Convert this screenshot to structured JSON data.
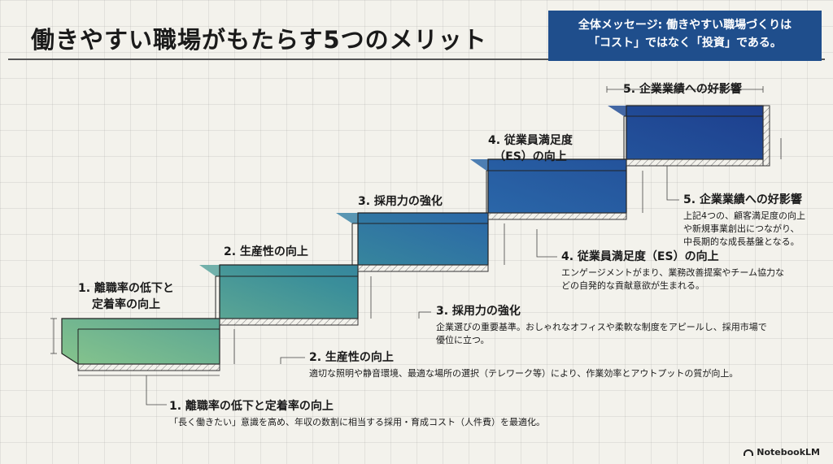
{
  "title": "働きやすい職場がもたらす5つのメリット",
  "message": {
    "line1": "全体メッセージ: 働きやすい職場づくりは",
    "line2": "「コスト」ではなく「投資」である。"
  },
  "steps": [
    {
      "label_line1": "1. 離職率の低下と",
      "label_line2": "定着率の向上",
      "desc_title": "1. 離職率の低下と定着率の向上",
      "desc_text": "「長く働きたい」意識を高め、年収の数割に相当する採用・育成コスト（人件費）を最適化。"
    },
    {
      "label": "2. 生産性の向上",
      "desc_title": "2. 生産性の向上",
      "desc_text": "適切な照明や静音環境、最適な場所の選択（テレワーク等）により、作業効率とアウトプットの質が向上。"
    },
    {
      "label": "3. 採用力の強化",
      "desc_title": "3. 採用力の強化",
      "desc_line1": "企業選びの重要基準。おしゃれなオフィスや柔軟な制度をアピールし、採用市場で",
      "desc_line2": "優位に立つ。"
    },
    {
      "label_line1": "4. 従業員満足度",
      "label_line2": "（ES）の向上",
      "desc_title": "4. 従業員満足度（ES）の向上",
      "desc_line1": "エンゲージメントがまり、業務改善提案やチーム協力な",
      "desc_line2": "どの自発的な貢献意欲が生まれる。"
    },
    {
      "label": "5. 企業業績への好影響",
      "desc_title": "5. 企業業績への好影響",
      "desc_line1": "上記4つの、顧客満足度の向上",
      "desc_line2": "や新規事業創出につながり、",
      "desc_line3": "中長期的な成長基盤となる。"
    }
  ],
  "brand": "NotebookLM",
  "colors": {
    "box_dark": "#1f4e8c",
    "stair_green": "#7fc08a",
    "stair_blue": "#1f4e9a"
  }
}
